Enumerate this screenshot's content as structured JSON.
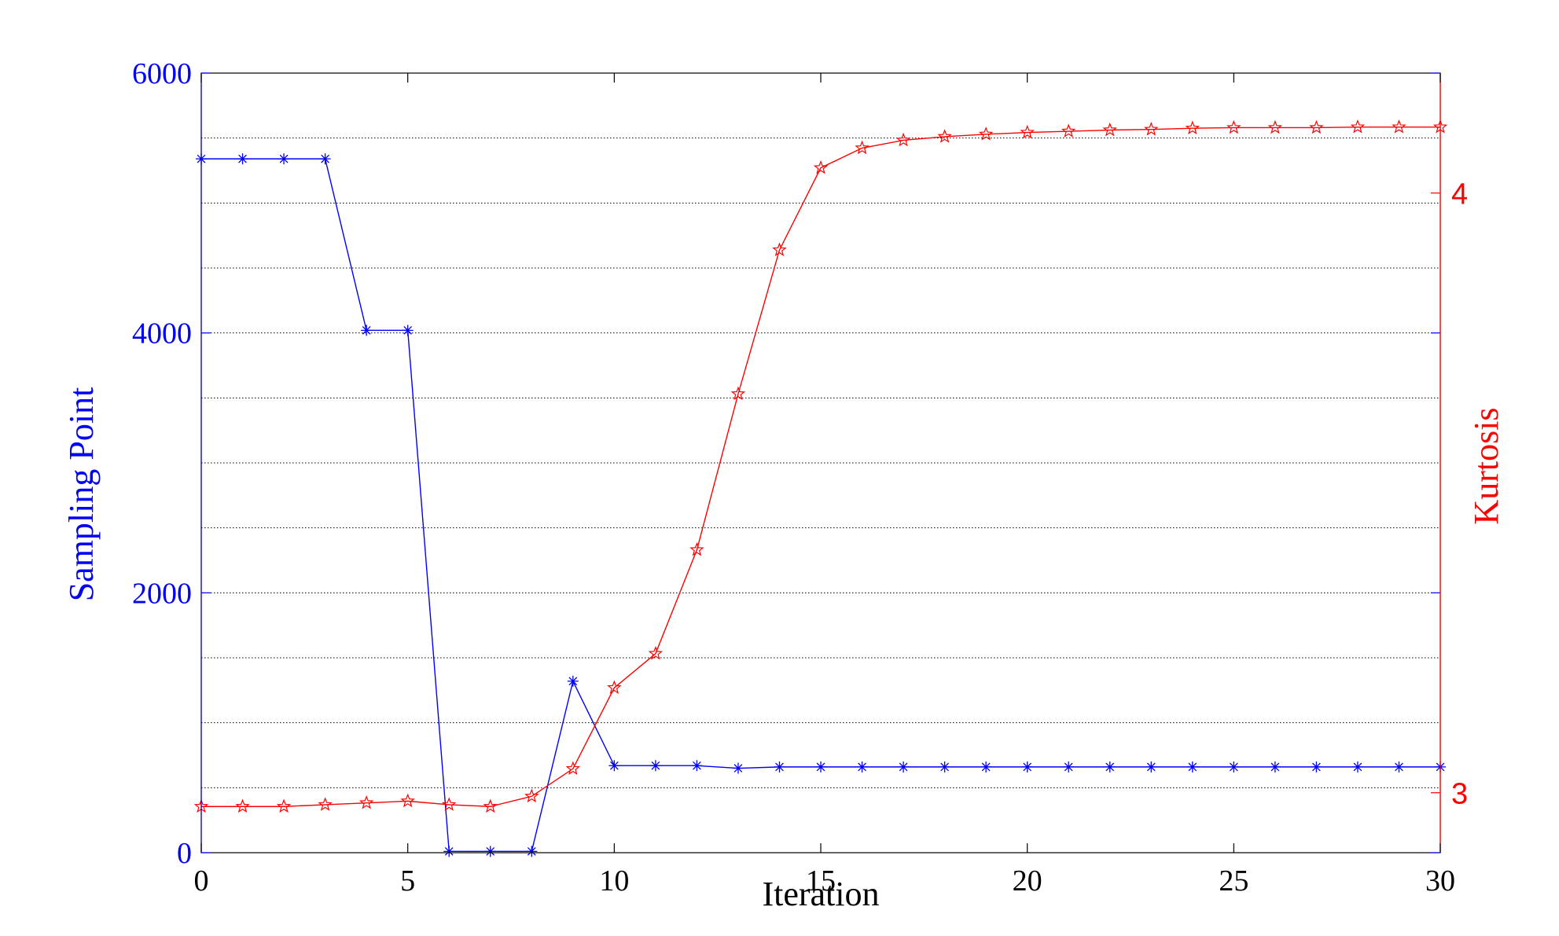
{
  "chart_data": {
    "type": "line",
    "xlabel": "Iteration",
    "ylabel_left": "Sampling Point",
    "ylabel_right": "Kurtosis",
    "xlim": [
      0,
      30
    ],
    "ylim_left": [
      0,
      6000
    ],
    "ylim_right": [
      2.9,
      4.2
    ],
    "xticks": [
      "0",
      "5",
      "10",
      "15",
      "20",
      "25",
      "30"
    ],
    "yticks_left": [
      "0",
      "2000",
      "4000",
      "6000"
    ],
    "yticks_right": [
      "3",
      "4"
    ],
    "grid": "horizontal dotted",
    "colors": {
      "left": "#0000ff",
      "right": "#ff0000"
    },
    "series": [
      {
        "axis": "left",
        "color": "#0000ff",
        "marker": "asterisk",
        "x": [
          0,
          1,
          2,
          3,
          4,
          5,
          6,
          7,
          8,
          9,
          10,
          11,
          12,
          13,
          14,
          15,
          16,
          17,
          18,
          19,
          20,
          21,
          22,
          23,
          24,
          25,
          26,
          27,
          28,
          29,
          30
        ],
        "values": [
          5340,
          5340,
          5340,
          5340,
          4020,
          4020,
          10,
          10,
          10,
          1320,
          670,
          670,
          670,
          650,
          660,
          660,
          660,
          660,
          660,
          660,
          660,
          660,
          660,
          660,
          660,
          660,
          660,
          660,
          660,
          660,
          660
        ]
      },
      {
        "axis": "right",
        "color": "#ff0000",
        "marker": "star",
        "x": [
          0,
          1,
          2,
          3,
          4,
          5,
          6,
          7,
          8,
          9,
          10,
          11,
          12,
          13,
          14,
          15,
          16,
          17,
          18,
          19,
          20,
          21,
          22,
          23,
          24,
          25,
          26,
          27,
          28,
          29,
          30
        ],
        "values": [
          2.977,
          2.977,
          2.977,
          2.98,
          2.983,
          2.986,
          2.98,
          2.977,
          2.994,
          3.04,
          3.175,
          3.232,
          3.405,
          3.665,
          3.905,
          4.042,
          4.075,
          4.088,
          4.094,
          4.098,
          4.101,
          4.103,
          4.105,
          4.106,
          4.108,
          4.109,
          4.109,
          4.109,
          4.11,
          4.11,
          4.11
        ]
      }
    ]
  }
}
